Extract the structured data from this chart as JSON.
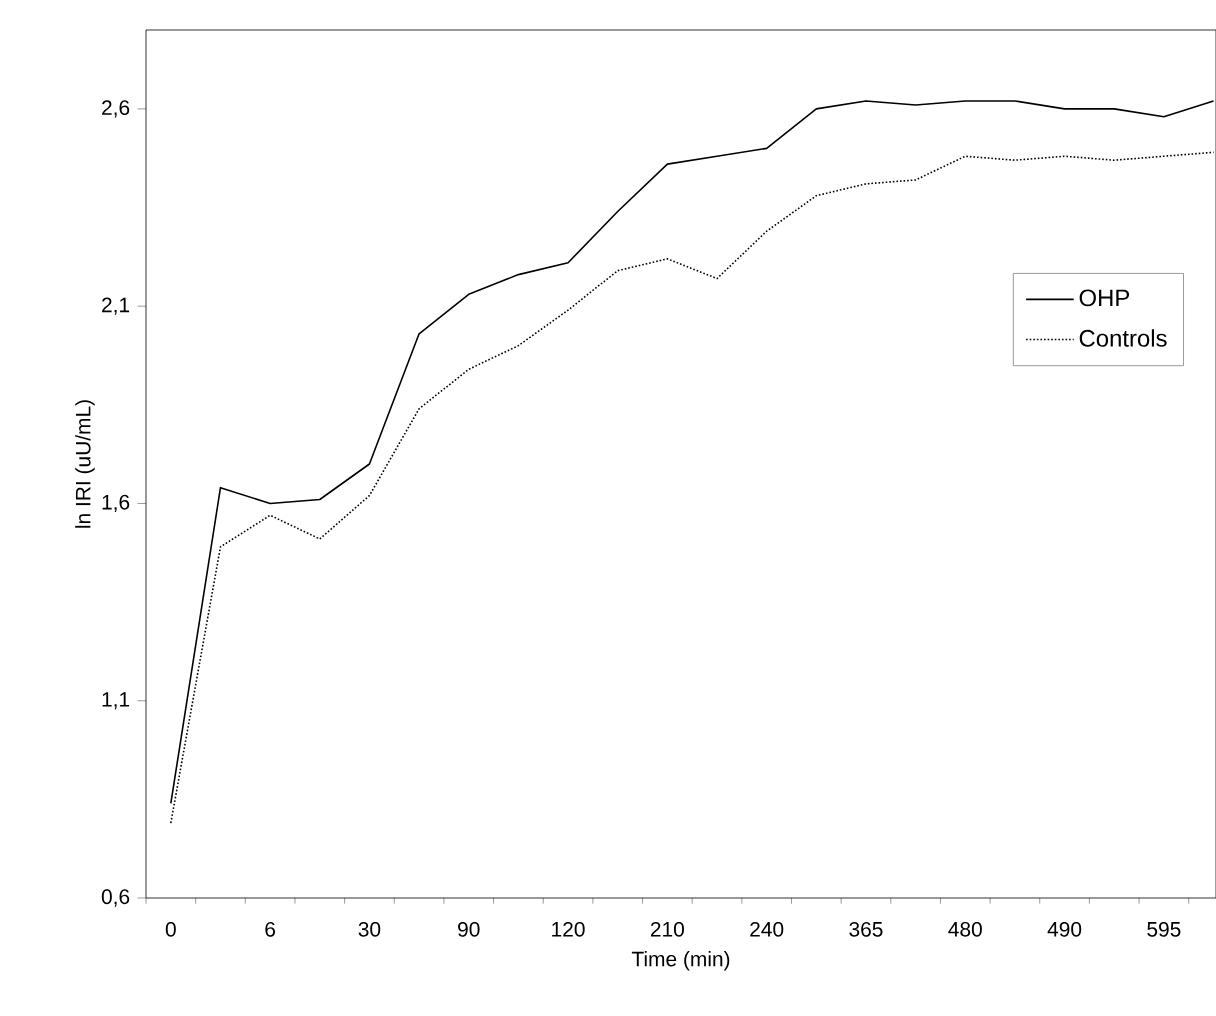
{
  "chart_data": {
    "type": "line",
    "xlabel": "Time (min)",
    "ylabel": "ln IRI (uU/mL)",
    "categories": [
      "0",
      null,
      "6",
      null,
      "30",
      null,
      "90",
      null,
      "120",
      null,
      "210",
      null,
      "240",
      null,
      "365",
      null,
      "480",
      null,
      "490",
      null,
      "595",
      null
    ],
    "series": [
      {
        "name": "OHP",
        "color": "#000000",
        "line_style": "solid",
        "values": [
          0.84,
          1.64,
          1.6,
          1.61,
          1.7,
          2.03,
          2.13,
          2.18,
          2.21,
          2.34,
          2.46,
          2.48,
          2.5,
          2.6,
          2.62,
          2.61,
          2.62,
          2.62,
          2.6,
          2.6,
          2.58,
          2.62
        ]
      },
      {
        "name": "Controls",
        "color": "#000000",
        "line_style": "dotted",
        "values": [
          0.79,
          1.49,
          1.57,
          1.51,
          1.62,
          1.84,
          1.94,
          2.0,
          2.09,
          2.19,
          2.22,
          2.17,
          2.29,
          2.38,
          2.41,
          2.42,
          2.48,
          2.47,
          2.48,
          2.47,
          2.48,
          2.49
        ]
      }
    ],
    "ylim": [
      0.6,
      2.8
    ],
    "yticks": [
      {
        "value": 0.6,
        "label": "0,6"
      },
      {
        "value": 1.1,
        "label": "1,1"
      },
      {
        "value": 1.6,
        "label": "1,6"
      },
      {
        "value": 2.1,
        "label": "2,1"
      },
      {
        "value": 2.6,
        "label": "2,6"
      }
    ],
    "grid": false,
    "legend": "right",
    "marker": "none"
  }
}
